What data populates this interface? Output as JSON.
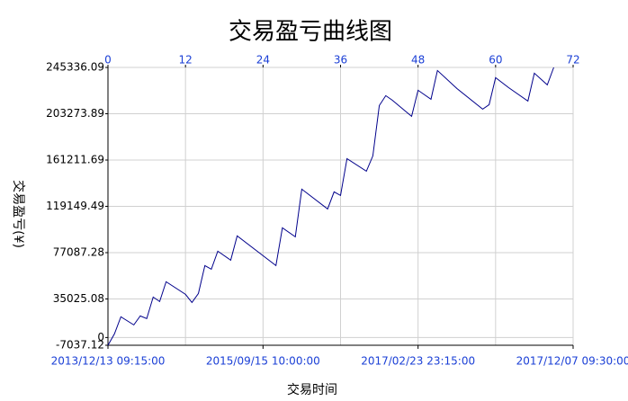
{
  "chart_data": {
    "type": "line",
    "title": "交易盈亏曲线图",
    "x_label": "交易时间",
    "y_label": "交易盈亏(¥)",
    "x": [
      0,
      1,
      2,
      4,
      5,
      6,
      7,
      8,
      9,
      12,
      13,
      14,
      15,
      16,
      17,
      19,
      20,
      26,
      27,
      29,
      30,
      34,
      35,
      36,
      37,
      40,
      41,
      42,
      43,
      44,
      47,
      48,
      50,
      51,
      54,
      58,
      59,
      60,
      62,
      65,
      66,
      68,
      69
    ],
    "series": [
      {
        "color": "#00008b",
        "values": [
          -7037.12,
          3267,
          18784,
          11434,
          19601,
          17151,
          36752,
          32668,
          50635,
          39202,
          31851,
          40018,
          65336,
          62069,
          78403,
          70236,
          92287,
          65336,
          99637,
          91470,
          134755,
          116787,
          132305,
          129038,
          162522,
          151088,
          164972,
          210707,
          219691,
          215607,
          200906,
          224593,
          216424,
          242557,
          226226,
          207442,
          211526,
          236026,
          227043,
          214790,
          240108,
          229492,
          245336.09
        ]
      }
    ],
    "xlim": [
      0,
      72
    ],
    "x2ticks": [
      0,
      12,
      24,
      36,
      48,
      60,
      72
    ],
    "xticks": [
      {
        "value": 0,
        "label": "2013/12/13 09:15:00"
      },
      {
        "value": 24,
        "label": "2015/09/15 10:00:00"
      },
      {
        "value": 48,
        "label": "2017/02/23 23:15:00"
      },
      {
        "value": 72,
        "label": "2017/12/07 09:30:00"
      }
    ],
    "ylim": [
      -7037.12,
      245336.09
    ],
    "yticks": [
      -7037.12,
      0,
      35025.08,
      77087.28,
      119149.49,
      161211.69,
      203273.89,
      245336.09
    ],
    "grid": true
  }
}
